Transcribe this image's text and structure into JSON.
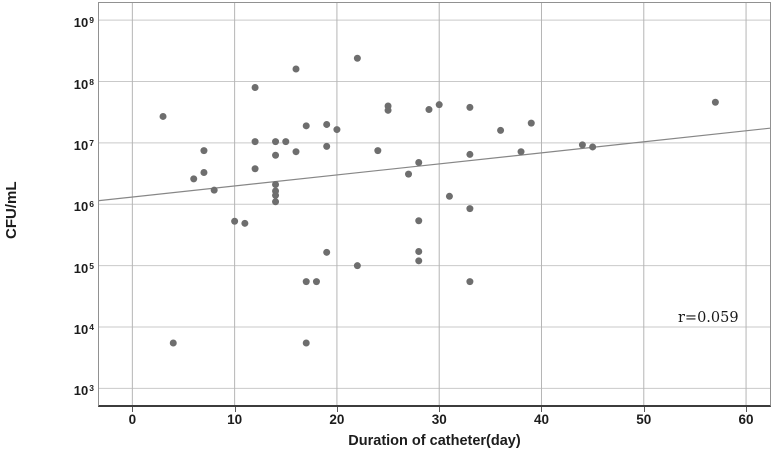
{
  "chart_data": {
    "type": "scatter",
    "title": "",
    "xlabel": "Duration of catheter(day)",
    "ylabel": "CFU/mL",
    "annotation": "r=0.059",
    "x_ticks": [
      0,
      10,
      20,
      30,
      40,
      50,
      60
    ],
    "y_ticks_exponents": [
      9,
      8,
      7,
      6,
      5,
      4,
      3
    ],
    "y_base": "10",
    "xlim": [
      -3.26,
      62.34
    ],
    "ylim_log": [
      2.73,
      9.28
    ],
    "grid": true,
    "legend": "none",
    "point_color": "#6e6e6e",
    "grid_color_h": "#c9c9c9",
    "grid_color_v": "#b5b5b5",
    "trend_color": "#878787",
    "axis_color": "#919191",
    "points": [
      [
        3,
        27000000
      ],
      [
        12,
        80000000
      ],
      [
        16,
        160000000
      ],
      [
        22,
        240000000
      ],
      [
        17,
        19000000
      ],
      [
        19,
        20000000
      ],
      [
        20,
        16500000
      ],
      [
        25,
        40000000
      ],
      [
        25,
        34000000
      ],
      [
        29,
        35000000
      ],
      [
        30,
        42000000
      ],
      [
        33,
        38000000
      ],
      [
        36,
        16000000
      ],
      [
        39,
        21000000
      ],
      [
        57,
        46000000
      ],
      [
        12,
        10500000
      ],
      [
        14,
        10500000
      ],
      [
        15,
        10500000
      ],
      [
        7,
        7500000
      ],
      [
        14,
        6300000
      ],
      [
        16,
        7200000
      ],
      [
        19,
        8800000
      ],
      [
        24,
        7500000
      ],
      [
        33,
        6500000
      ],
      [
        38,
        7200000
      ],
      [
        44,
        9300000
      ],
      [
        45,
        8600000
      ],
      [
        6,
        2600000
      ],
      [
        7,
        3300000
      ],
      [
        8,
        1700000
      ],
      [
        12,
        3800000
      ],
      [
        14,
        2100000
      ],
      [
        14,
        1650000
      ],
      [
        14,
        1400000
      ],
      [
        14,
        1100000
      ],
      [
        27,
        3100000
      ],
      [
        28,
        4800000
      ],
      [
        31,
        1350000
      ],
      [
        33,
        850000
      ],
      [
        10,
        530000
      ],
      [
        11,
        490000
      ],
      [
        28,
        540000
      ],
      [
        19,
        165000
      ],
      [
        22,
        100000
      ],
      [
        28,
        170000
      ],
      [
        28,
        120000
      ],
      [
        17,
        55000
      ],
      [
        18,
        55000
      ],
      [
        33,
        55000
      ],
      [
        4,
        5500
      ],
      [
        17,
        5500
      ]
    ],
    "trendline": {
      "x1_day": -3.26,
      "y1_log": 6.06,
      "x2_day": 62.34,
      "y2_log": 7.24
    }
  }
}
